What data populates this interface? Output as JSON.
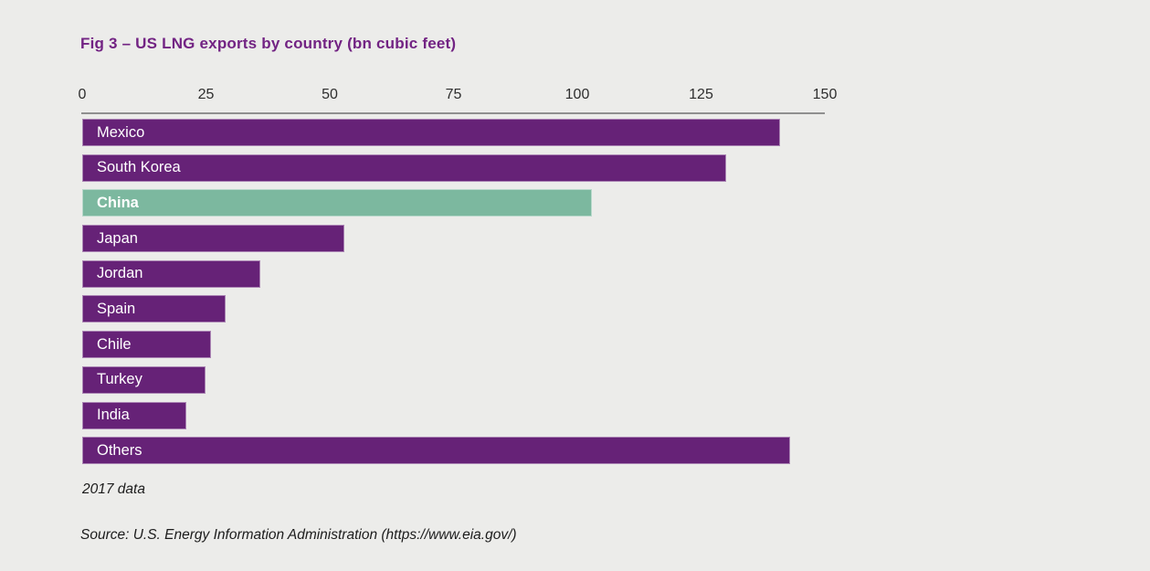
{
  "title": "Fig 3 – US LNG exports by country (bn cubic feet)",
  "footnote": "2017 data",
  "source": "Source: U.S. Energy Information Administration (https://www.eia.gov/)",
  "colors": {
    "background": "#ececea",
    "bar": "#662277",
    "bar_highlight": "#7cb89f",
    "title": "#722383",
    "axis_line": "#8f8f8f",
    "axis_text": "#2e2e2e",
    "bar_label": "#ffffff"
  },
  "chart_data": {
    "type": "bar",
    "orientation": "horizontal",
    "title": "Fig 3 – US LNG exports by country (bn cubic feet)",
    "categories": [
      "Mexico",
      "South Korea",
      "China",
      "Japan",
      "Jordan",
      "Spain",
      "Chile",
      "Turkey",
      "India",
      "Others"
    ],
    "values": [
      141,
      130,
      103,
      53,
      36,
      29,
      26,
      25,
      21,
      143
    ],
    "highlighted_category": "China",
    "unit": "bn cubic feet",
    "xlabel": "",
    "ylabel": "",
    "xlim": [
      0,
      150
    ],
    "xticks": [
      0,
      25,
      50,
      75,
      100,
      125,
      150
    ],
    "grid": false,
    "legend": "none",
    "annotations": [
      "2017 data"
    ]
  }
}
